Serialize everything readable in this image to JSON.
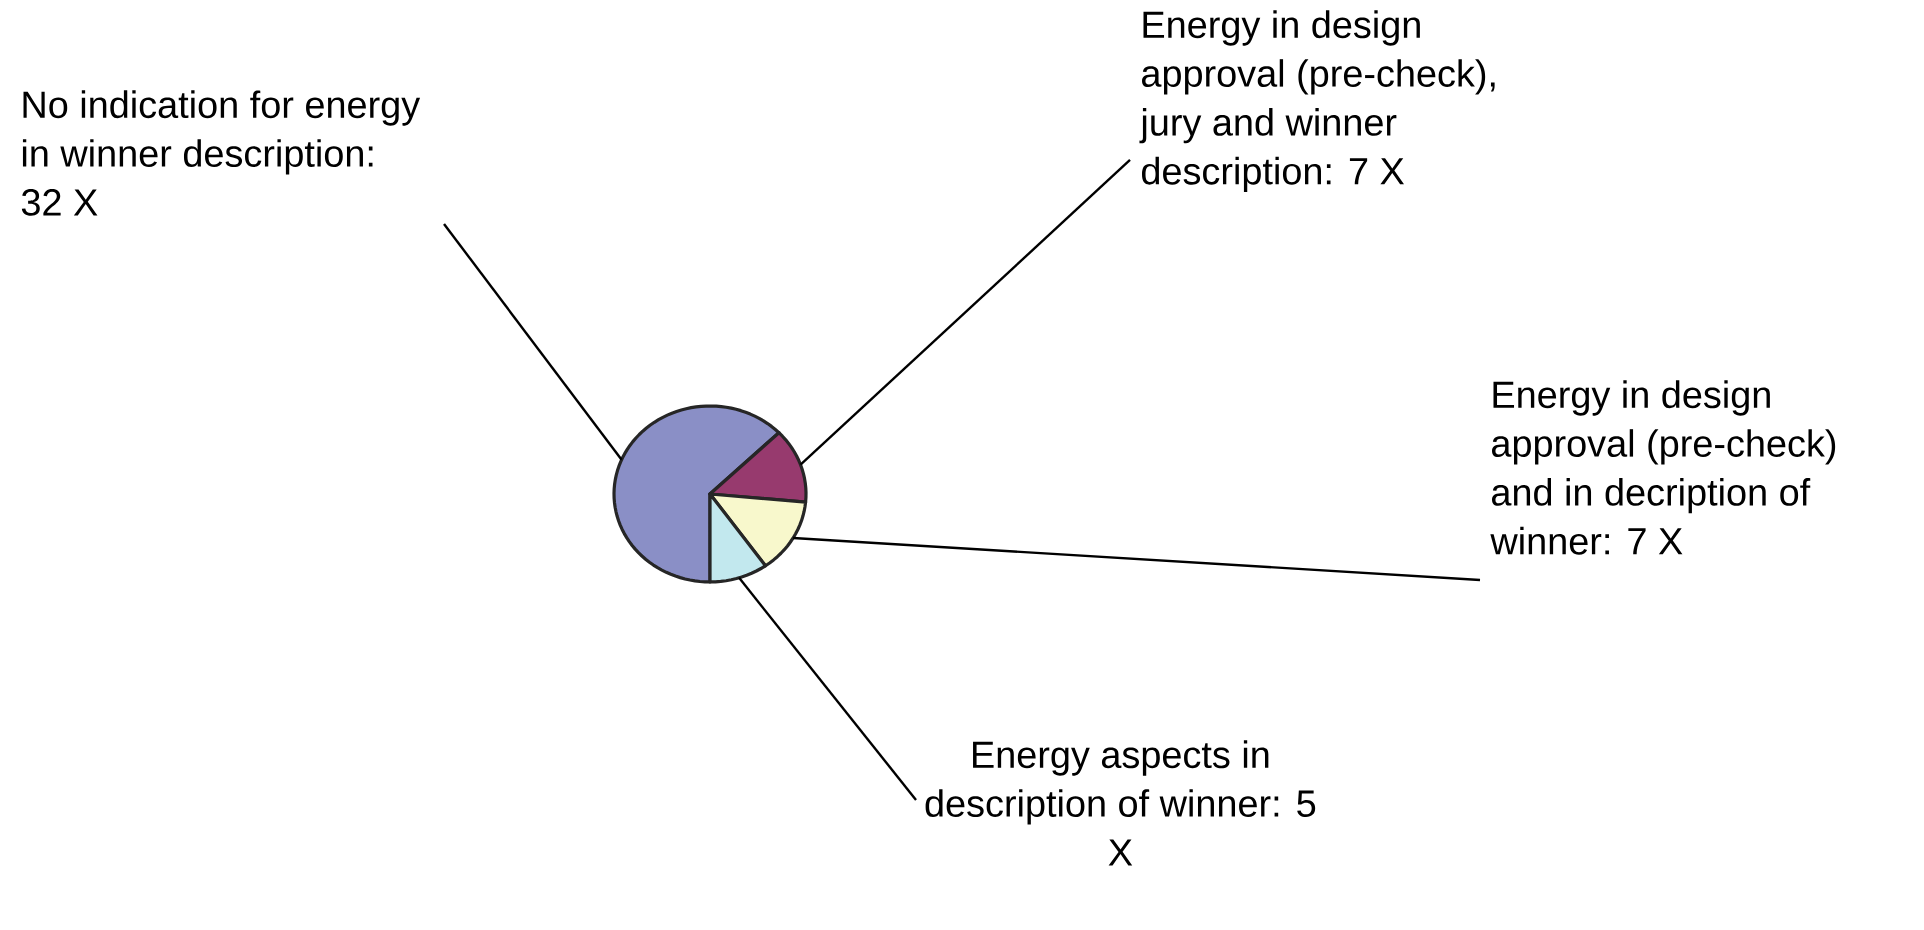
{
  "chart_data": {
    "type": "pie",
    "categories": [
      "No indication for energy in winner description: 32 X",
      "Energy in design approval (pre-check), jury and winner description: 7 X",
      "Energy in design approval  (pre-check) and in decription of winner: 7 X",
      "Energy aspects in description of winner: 5 X"
    ],
    "values": [
      32,
      7,
      7,
      5
    ],
    "colors": [
      "#8a8fc6",
      "#973a6e",
      "#f8f8cc",
      "#c2e8ee"
    ]
  }
}
